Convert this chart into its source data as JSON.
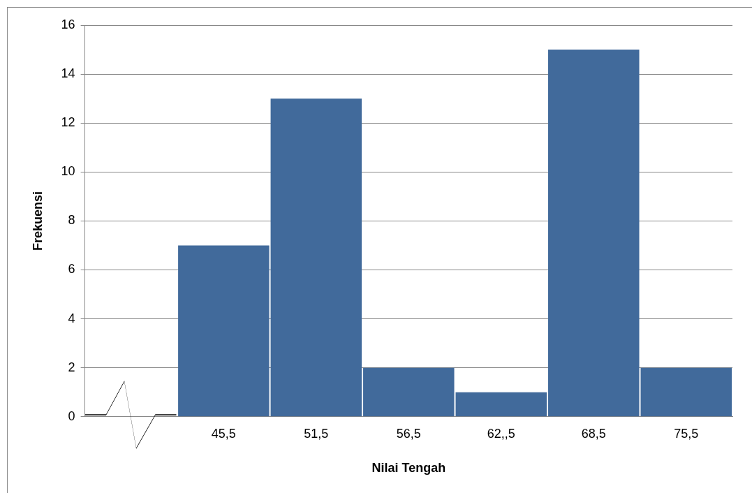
{
  "chart_data": {
    "type": "bar",
    "xlabel": "Nilai Tengah",
    "ylabel": "Frekuensi",
    "categories": [
      null,
      "45,5",
      "51,5",
      "56,5",
      "62,,5",
      "68,5",
      "75,5"
    ],
    "values": [
      null,
      7,
      13,
      2,
      1,
      15,
      2
    ],
    "color": "#416a9b",
    "ylim": [
      0,
      16
    ],
    "yticks": [
      0,
      2,
      4,
      6,
      8,
      10,
      12,
      14,
      16
    ],
    "grid": "y",
    "legend": false
  }
}
